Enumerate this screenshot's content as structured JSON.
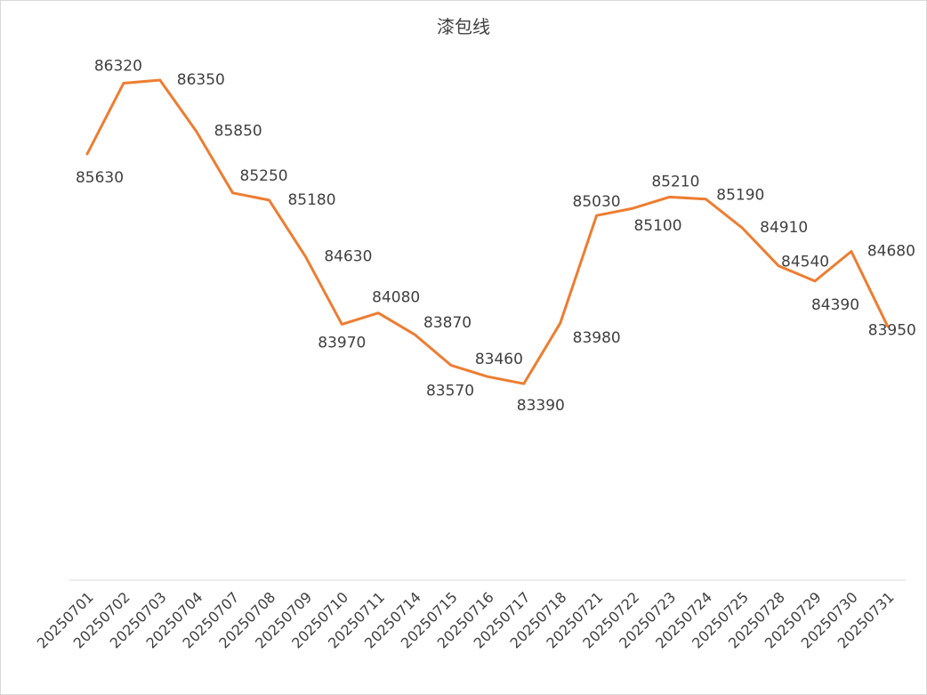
{
  "chart_data": {
    "type": "line",
    "title": "漆包线",
    "xlabel": "",
    "ylabel": "",
    "ylim": [
      80000,
      87000
    ],
    "grid": false,
    "drop_lines": true,
    "categories": [
      "20250701",
      "20250702",
      "20250703",
      "20250704",
      "20250707",
      "20250708",
      "20250709",
      "20250710",
      "20250711",
      "20250714",
      "20250715",
      "20250716",
      "20250717",
      "20250718",
      "20250721",
      "20250722",
      "20250723",
      "20250724",
      "20250725",
      "20250728",
      "20250729",
      "20250730",
      "20250731"
    ],
    "series": [
      {
        "name": "漆包线",
        "color": "#ED7D31",
        "values": [
          85630,
          86320,
          86350,
          85850,
          85250,
          85180,
          84630,
          83970,
          84080,
          83870,
          83570,
          83460,
          83390,
          83980,
          85030,
          85100,
          85210,
          85190,
          84910,
          84540,
          84390,
          84680,
          83950
        ]
      }
    ],
    "data_labels": [
      "85630",
      "86320",
      "86350",
      "85850",
      "85250",
      "85180",
      "84630",
      "83970",
      "84080",
      "83870",
      "83570",
      "83460",
      "83390",
      "83980",
      "85030",
      "85100",
      "85210",
      "85190",
      "84910",
      "84540",
      "84390",
      "84680",
      "83950"
    ]
  },
  "colors": {
    "line": "#ED7D31",
    "drop_line": "#5B9BD5",
    "axis": "#d9d9d9",
    "text": "#404040"
  }
}
